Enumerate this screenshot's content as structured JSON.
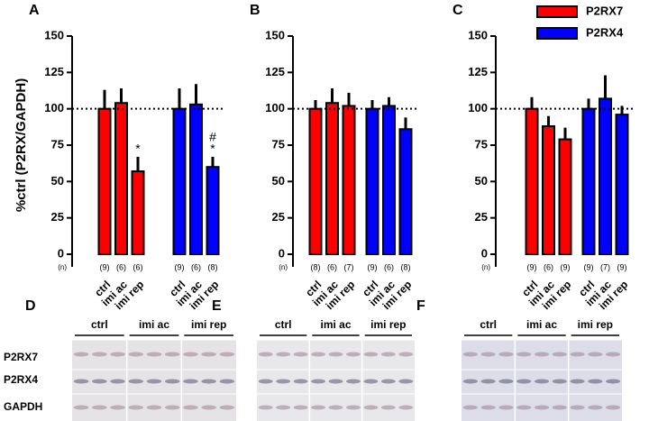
{
  "chart_data": [
    {
      "type": "bar",
      "panel": "A",
      "ylabel": "%ctrl (P2RX/GAPDH)",
      "ylim": [
        0,
        150
      ],
      "yticks": [
        0,
        25,
        50,
        75,
        100,
        125,
        150
      ],
      "reference_line": 100,
      "n_axis_label": "(n)",
      "categories": [
        "ctrl",
        "imi ac",
        "imi rep"
      ],
      "series": [
        {
          "name": "P2RX7",
          "color": "#ff0000",
          "values": [
            100,
            104,
            57
          ],
          "errors": [
            13,
            10,
            10
          ],
          "n_labels": [
            "(9)",
            "(6)",
            "(6)"
          ],
          "annotations": [
            null,
            null,
            [
              "*"
            ]
          ]
        },
        {
          "name": "P2RX4",
          "color": "#0000ff",
          "values": [
            100,
            103,
            60
          ],
          "errors": [
            14,
            14,
            7
          ],
          "n_labels": [
            "(9)",
            "(6)",
            "(8)"
          ],
          "annotations": [
            null,
            null,
            [
              "#",
              "*"
            ]
          ]
        }
      ]
    },
    {
      "type": "bar",
      "panel": "B",
      "ylim": [
        0,
        150
      ],
      "yticks": [
        0,
        25,
        50,
        75,
        100,
        125,
        150
      ],
      "reference_line": 100,
      "n_axis_label": "(n)",
      "categories": [
        "ctrl",
        "imi ac",
        "imi rep"
      ],
      "series": [
        {
          "name": "P2RX7",
          "color": "#ff0000",
          "values": [
            100,
            104,
            102
          ],
          "errors": [
            6,
            10,
            9
          ],
          "n_labels": [
            "(8)",
            "(6)",
            "(7)"
          ]
        },
        {
          "name": "P2RX4",
          "color": "#0000ff",
          "values": [
            100,
            102,
            86
          ],
          "errors": [
            6,
            6,
            8
          ],
          "n_labels": [
            "(9)",
            "(6)",
            "(8)"
          ]
        }
      ]
    },
    {
      "type": "bar",
      "panel": "C",
      "ylim": [
        0,
        150
      ],
      "yticks": [
        0,
        25,
        50,
        75,
        100,
        125,
        150
      ],
      "reference_line": 100,
      "n_axis_label": "(n)",
      "legend": "upper right",
      "categories": [
        "ctrl",
        "imi ac",
        "imi rep"
      ],
      "series": [
        {
          "name": "P2RX7",
          "color": "#ff0000",
          "values": [
            100,
            88,
            79
          ],
          "errors": [
            8,
            7,
            8
          ],
          "n_labels": [
            "(9)",
            "(6)",
            "(9)"
          ]
        },
        {
          "name": "P2RX4",
          "color": "#0000ff",
          "values": [
            100,
            107,
            96
          ],
          "errors": [
            7,
            16,
            6
          ],
          "n_labels": [
            "(9)",
            "(7)",
            "(9)"
          ]
        }
      ]
    }
  ],
  "blots": [
    {
      "panel": "D",
      "groups": [
        "ctrl",
        "imi ac",
        "imi rep"
      ],
      "rows": [
        "P2RX7",
        "P2RX4",
        "GAPDH"
      ]
    },
    {
      "panel": "E",
      "groups": [
        "ctrl",
        "imi ac",
        "imi rep"
      ]
    },
    {
      "panel": "F",
      "groups": [
        "ctrl",
        "imi ac",
        "imi rep"
      ]
    }
  ]
}
